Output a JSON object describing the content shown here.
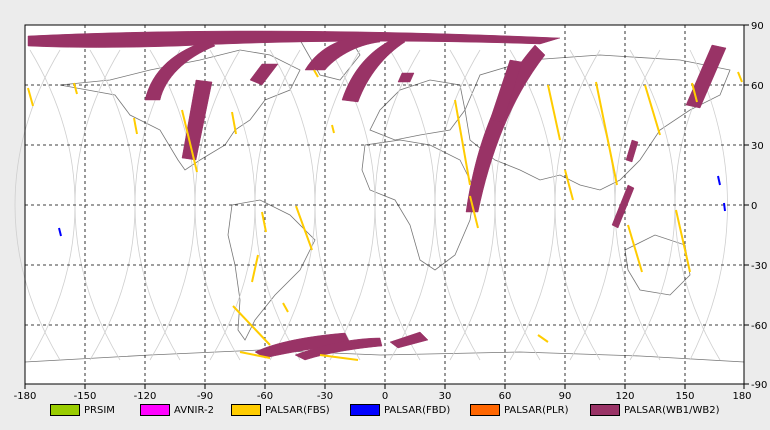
{
  "map": {
    "lon_ticks": [
      "-180",
      "-150",
      "-120",
      "-90",
      "-60",
      "-30",
      "0",
      "30",
      "60",
      "90",
      "120",
      "150",
      "180"
    ],
    "lat_ticks": [
      "90",
      "60",
      "30",
      "0",
      "-30",
      "-60",
      "-90"
    ],
    "grid": true,
    "projection": "equirectangular"
  },
  "legend": [
    {
      "label": "PRSIM",
      "color": "#99cc00"
    },
    {
      "label": "AVNIR-2",
      "color": "#ff00ff"
    },
    {
      "label": "PALSAR(FBS)",
      "color": "#ffcc00"
    },
    {
      "label": "PALSAR(FBD)",
      "color": "#0000ff"
    },
    {
      "label": "PALSAR(PLR)",
      "color": "#ff6600"
    },
    {
      "label": "PALSAR(WB1/WB2)",
      "color": "#993366"
    }
  ]
}
